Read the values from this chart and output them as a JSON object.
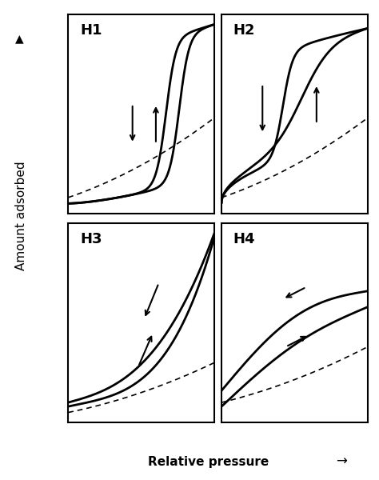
{
  "background_color": "#ffffff",
  "border_color": "#000000",
  "labels": [
    "H1",
    "H2",
    "H3",
    "H4"
  ],
  "ylabel": "Amount adsorbed",
  "xlabel": "Relative pressure",
  "title_fontsize": 13,
  "label_fontsize": 11
}
